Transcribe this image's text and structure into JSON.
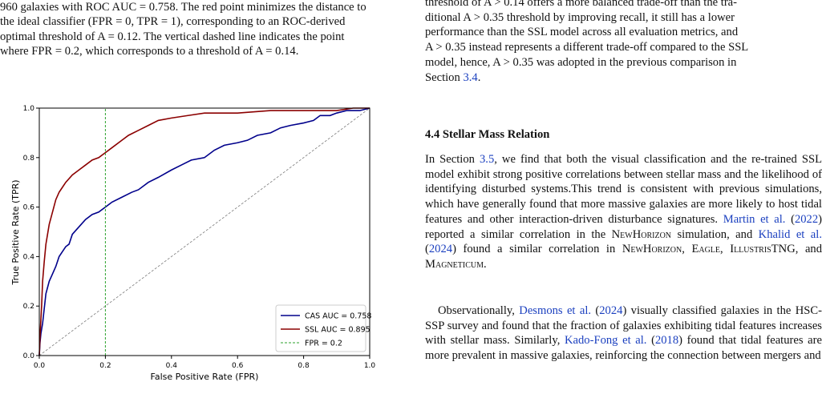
{
  "caption": {
    "line1": "960 galaxies with ROC AUC = 0.758. The red point minimizes the distance to",
    "line2": "the ideal classifier (FPR = 0, TPR = 1), corresponding to an ROC-derived",
    "line3": "optimal threshold of A = 0.12. The vertical dashed line indicates the point",
    "line4": "where FPR = 0.2, which corresponds to a threshold of A = 0.14."
  },
  "right_lead": {
    "line0": "threshold of A > 0.14 offers a more balanced trade-off than the tra-",
    "line1": "ditional A > 0.35 threshold by improving recall, it still has a lower",
    "line2": "performance than the SSL model across all evaluation metrics, and",
    "line3": "A > 0.35 instead represents a different trade-off compared to the SSL",
    "line4": "model, hence, A > 0.35 was adopted in the previous comparison in",
    "line5_pre": "Section ",
    "line5_ref": "3.4",
    "line5_post": "."
  },
  "section": {
    "heading": "4.4 Stellar Mass Relation"
  },
  "para1": {
    "t1": "In Section ",
    "ref1": "3.5",
    "t2": ", we find that both the visual classification and the re-trained SSL model exhibit strong positive correlations between stellar mass and the likelihood of identifying disturbed systems.This trend is consistent with previous simulations, which have generally found that more massive galaxies are more likely to host tidal features and other interaction-driven disturbance signatures. ",
    "ref2": "Martin et al.",
    "t3": " (",
    "ref3": "2022",
    "t4": ") reported a similar correlation in the ",
    "sc1": "NewHorizon",
    "t5": " simulation, and ",
    "ref4": "Khalid et al.",
    "t6": " (",
    "ref5": "2024",
    "t7": ") found a similar correlation in ",
    "sc2": "NewHorizon",
    "t8": ", ",
    "sc3": "Eagle",
    "t9": ", ",
    "sc4": "IllustrisTNG",
    "t10": ", and ",
    "sc5": "Magneticum",
    "t11": "."
  },
  "para2": {
    "t1": "Observationally, ",
    "ref1": "Desmons et al.",
    "t2": " (",
    "ref2": "2024",
    "t3": ") visually classified galaxies in the HSC-SSP survey and found that the fraction of galaxies exhibiting tidal features increases with stellar mass. Similarly, ",
    "ref3": "Kado-Fong et al.",
    "t4": " (",
    "ref4": "2018",
    "t5": ") found that tidal features are more prevalent in massive galaxies, reinforcing the connection between mergers and"
  },
  "chart_data": {
    "type": "line",
    "xlabel": "False Positive Rate (FPR)",
    "ylabel": "True Positive Rate (TPR)",
    "xlim": [
      0,
      1
    ],
    "ylim": [
      0,
      1
    ],
    "xticks": [
      "0.0",
      "0.2",
      "0.4",
      "0.6",
      "0.8",
      "1.0"
    ],
    "yticks": [
      "0.0",
      "0.2",
      "0.4",
      "0.6",
      "0.8",
      "1.0"
    ],
    "grid": false,
    "legend_position": "lower-right",
    "series": [
      {
        "name": "CAS AUC = 0.758",
        "color": "#00008b",
        "style": "solid",
        "x": [
          0,
          0.002,
          0.005,
          0.01,
          0.015,
          0.02,
          0.03,
          0.04,
          0.05,
          0.06,
          0.07,
          0.08,
          0.09,
          0.1,
          0.12,
          0.14,
          0.16,
          0.18,
          0.2,
          0.22,
          0.25,
          0.28,
          0.3,
          0.33,
          0.36,
          0.4,
          0.43,
          0.46,
          0.5,
          0.53,
          0.56,
          0.6,
          0.63,
          0.66,
          0.7,
          0.73,
          0.76,
          0.8,
          0.83,
          0.85,
          0.88,
          0.9,
          0.93,
          0.95,
          0.97,
          1.0
        ],
        "y": [
          0,
          0.05,
          0.09,
          0.13,
          0.19,
          0.25,
          0.3,
          0.33,
          0.36,
          0.4,
          0.42,
          0.44,
          0.45,
          0.49,
          0.52,
          0.55,
          0.57,
          0.58,
          0.6,
          0.62,
          0.64,
          0.66,
          0.67,
          0.7,
          0.72,
          0.75,
          0.77,
          0.79,
          0.8,
          0.83,
          0.85,
          0.86,
          0.87,
          0.89,
          0.9,
          0.92,
          0.93,
          0.94,
          0.95,
          0.97,
          0.97,
          0.98,
          0.99,
          0.99,
          0.99,
          1.0
        ]
      },
      {
        "name": "SSL AUC = 0.895",
        "color": "#8b0000",
        "style": "solid",
        "x": [
          0,
          0.003,
          0.007,
          0.01,
          0.015,
          0.02,
          0.03,
          0.04,
          0.05,
          0.06,
          0.07,
          0.08,
          0.1,
          0.12,
          0.14,
          0.16,
          0.18,
          0.2,
          0.22,
          0.25,
          0.27,
          0.3,
          0.33,
          0.36,
          0.4,
          0.45,
          0.5,
          0.55,
          0.6,
          0.7,
          0.8,
          0.9,
          0.95,
          1.0
        ],
        "y": [
          0,
          0.1,
          0.2,
          0.3,
          0.38,
          0.45,
          0.53,
          0.58,
          0.63,
          0.66,
          0.68,
          0.7,
          0.73,
          0.75,
          0.77,
          0.79,
          0.8,
          0.82,
          0.84,
          0.87,
          0.89,
          0.91,
          0.93,
          0.95,
          0.96,
          0.97,
          0.98,
          0.98,
          0.98,
          0.99,
          0.99,
          0.99,
          1.0,
          1.0
        ]
      },
      {
        "name": "FPR = 0.2",
        "color": "#2ca02c",
        "style": "dashed",
        "x": [
          0.2,
          0.2
        ],
        "y": [
          0,
          1
        ]
      }
    ],
    "diagonal": {
      "color": "#808080",
      "style": "dashed",
      "x": [
        0,
        1
      ],
      "y": [
        0,
        1
      ]
    }
  }
}
